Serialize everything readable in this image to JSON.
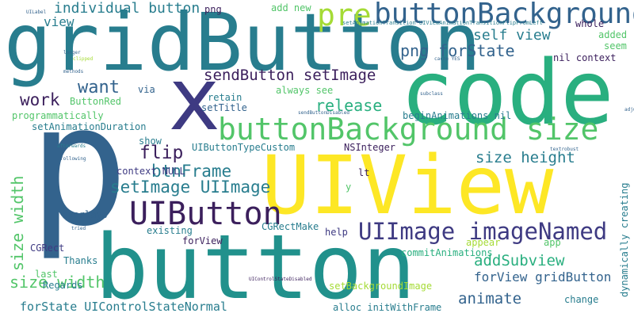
{
  "palette": {
    "purple": "#3b1f5c",
    "indigo": "#3e3a82",
    "blue": "#33638d",
    "teal": "#287d8e",
    "green": "#29af7f",
    "lightgreen": "#52c569",
    "lime": "#a5db36",
    "yellow": "#fde725"
  },
  "words": [
    "code",
    "gridButton",
    "button",
    "UIView",
    "p",
    "x",
    "buttonBackground",
    "buttonBackground size",
    "UIButton",
    "UIImage imageNamed",
    "pre",
    "sendButton setImage",
    "setImage UIImage",
    "btnFrame",
    "flip",
    "work",
    "want",
    "release",
    "self view",
    "png forState",
    "individual button",
    "view",
    "size width",
    "size height",
    "addSubview",
    "forView gridButton",
    "animate",
    "forState UIControlStateNormal",
    "UIButtonTypeCustom",
    "NSInteger",
    "nil context",
    "add new",
    "png",
    "whole",
    "added",
    "seem",
    "always see",
    "retain",
    "setTitle",
    "ButtonRed",
    "programmatically",
    "setAnimationDuration",
    "via",
    "beginAnimations nil",
    "show",
    "context NULL",
    "lt",
    "y",
    "overlays",
    "existing",
    "CGRectMake",
    "help",
    "forView",
    "CGRect",
    "Thanks",
    "last",
    "Regards",
    "setBackgroundImage",
    "alloc initWithFrame",
    "change",
    "commitAnimations",
    "appear",
    "app",
    "dynamically creating",
    "UILabel",
    "sendButtonDisabled",
    "setAnimationTransition UIViewAnimationTransitionFlipFromLeft",
    "cache YES",
    "longer",
    "clipped",
    "methods",
    "subclass",
    "tried",
    "afterwards",
    "following",
    "adjust",
    "textrobust",
    "UIControlStateDisabled"
  ]
}
